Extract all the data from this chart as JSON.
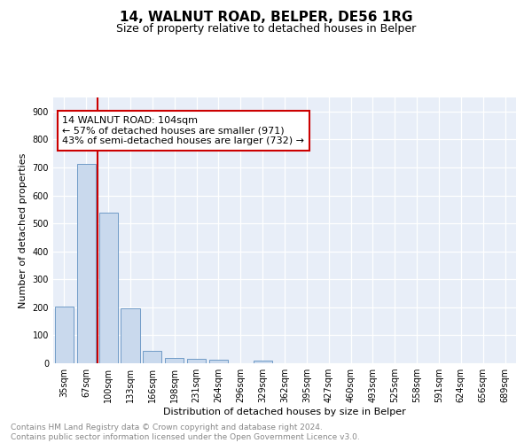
{
  "title": "14, WALNUT ROAD, BELPER, DE56 1RG",
  "subtitle": "Size of property relative to detached houses in Belper",
  "xlabel": "Distribution of detached houses by size in Belper",
  "ylabel": "Number of detached properties",
  "categories": [
    "35sqm",
    "67sqm",
    "100sqm",
    "133sqm",
    "166sqm",
    "198sqm",
    "231sqm",
    "264sqm",
    "296sqm",
    "329sqm",
    "362sqm",
    "395sqm",
    "427sqm",
    "460sqm",
    "493sqm",
    "525sqm",
    "558sqm",
    "591sqm",
    "624sqm",
    "656sqm",
    "689sqm"
  ],
  "values": [
    203,
    714,
    537,
    196,
    44,
    20,
    15,
    13,
    0,
    10,
    0,
    0,
    0,
    0,
    0,
    0,
    0,
    0,
    0,
    0,
    0
  ],
  "bar_color": "#c9d9ed",
  "bar_edge_color": "#6090c0",
  "property_line_color": "#cc0000",
  "property_line_index": 1.5,
  "annotation_text": "14 WALNUT ROAD: 104sqm\n← 57% of detached houses are smaller (971)\n43% of semi-detached houses are larger (732) →",
  "annotation_box_color": "#cc0000",
  "ylim": [
    0,
    950
  ],
  "yticks": [
    0,
    100,
    200,
    300,
    400,
    500,
    600,
    700,
    800,
    900
  ],
  "plot_bg_color": "#e8eef8",
  "footer_text": "Contains HM Land Registry data © Crown copyright and database right 2024.\nContains public sector information licensed under the Open Government Licence v3.0.",
  "title_fontsize": 11,
  "subtitle_fontsize": 9,
  "annotation_fontsize": 8,
  "footer_fontsize": 6.5,
  "ylabel_fontsize": 8,
  "xlabel_fontsize": 8,
  "tick_fontsize": 7
}
